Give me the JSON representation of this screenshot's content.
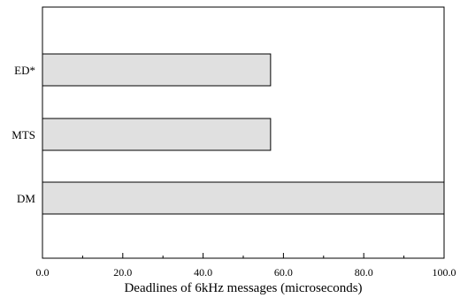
{
  "chart_data": {
    "type": "bar",
    "orientation": "horizontal",
    "categories": [
      "ED*",
      "MTS",
      "DM"
    ],
    "values": [
      56.8,
      56.8,
      100.0
    ],
    "xlabel": "Deadlines of 6kHz messages (microseconds)",
    "ylabel": "",
    "xlim": [
      0,
      100
    ],
    "xticks": [
      "0.0",
      "20.0",
      "40.0",
      "60.0",
      "80.0",
      "100.0"
    ],
    "grid": false,
    "legend": "none",
    "bar_fill": "#e0e0e0",
    "bar_stroke": "#000000"
  }
}
